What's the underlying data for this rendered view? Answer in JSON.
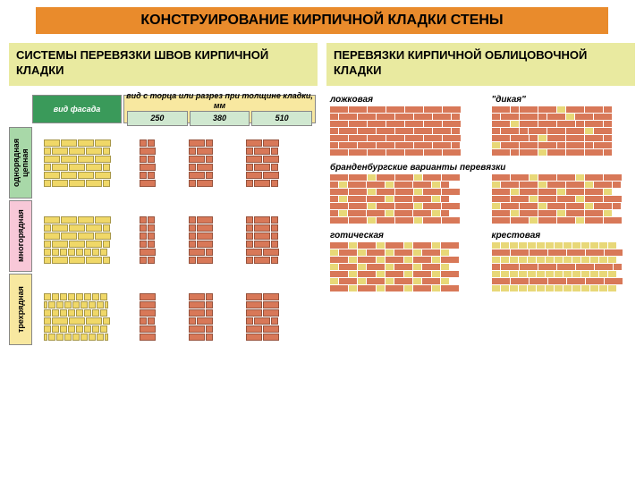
{
  "title": "КОНСТРУИРОВАНИЕ КИРПИЧНОЙ КЛАДКИ СТЕНЫ",
  "left": {
    "subtitle": "СИСТЕМЫ ПЕРЕВЯЗКИ ШВОВ КИРПИЧНОЙ КЛАДКИ",
    "vlabels": [
      "однорядная цепная",
      "многорядная",
      "трехрядная"
    ],
    "header_fasad": "вид фасада",
    "header_torec": "вид с торца или разрез при толщине кладки, мм",
    "widths": [
      "250",
      "380",
      "510"
    ],
    "label_colors": {
      "v0": "#a8d8a8",
      "v1": "#f8c8d8",
      "v2": "#f8e8a0"
    }
  },
  "right": {
    "subtitle": "ПЕРЕВЯЗКИ КИРПИЧНОЙ ОБЛИЦОВОЧНОЙ КЛАДКИ",
    "patterns": {
      "row1": [
        "ложковая",
        "\"дикая\""
      ],
      "brand_title": "бранденбургские варианты перевязки",
      "row3": [
        "готическая",
        "крестовая"
      ]
    }
  },
  "colors": {
    "title_bg": "#e98b2c",
    "subtitle_bg": "#e9eaa0",
    "brick_yellow": "#f0d868",
    "brick_red": "#d87858",
    "pattern_red": "#d87858",
    "pattern_yellow": "#e8d878",
    "green_header": "#3a9a5a"
  }
}
